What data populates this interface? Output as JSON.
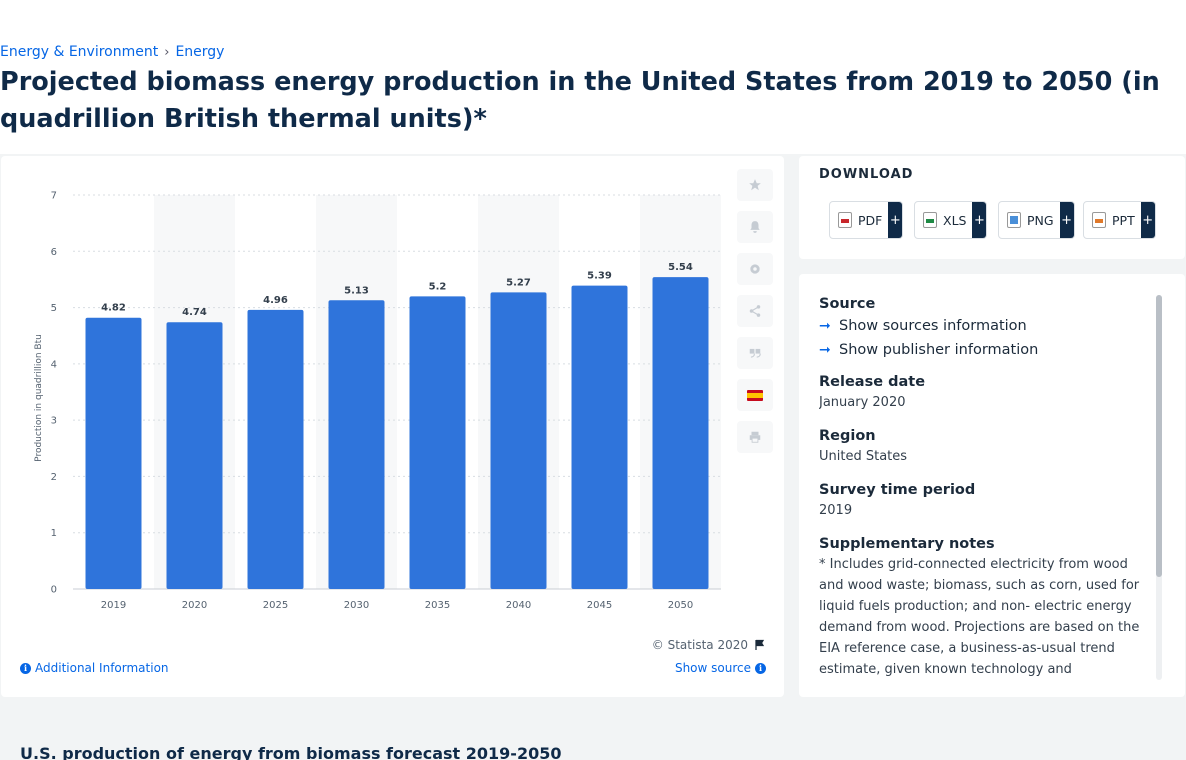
{
  "breadcrumb": {
    "items": [
      "Energy & Environment",
      "Energy"
    ],
    "separator": "›"
  },
  "page": {
    "title": "Projected biomass energy production in the United States from 2019 to 2050 (in quadrillion British thermal units)*",
    "related_title": "U.S. production of energy from biomass forecast 2019-2050"
  },
  "chart_data": {
    "type": "bar",
    "categories": [
      "2019",
      "2020",
      "2025",
      "2030",
      "2035",
      "2040",
      "2045",
      "2050"
    ],
    "values": [
      4.82,
      4.74,
      4.96,
      5.13,
      5.2,
      5.27,
      5.39,
      5.54
    ],
    "data_labels": [
      "4.82",
      "4.74",
      "4.96",
      "5.13",
      "5.2",
      "5.27",
      "5.39",
      "5.54"
    ],
    "title": "",
    "xlabel": "",
    "ylabel": "Production in quadrillion Btu",
    "ylim": [
      0,
      7
    ],
    "yticks": [
      0,
      1,
      2,
      3,
      4,
      5,
      6,
      7
    ],
    "grid": true,
    "bar_color": "#2f74db",
    "band_color": "#f7f8f9"
  },
  "chart_footer": {
    "copyright": "© Statista 2020",
    "additional_info": "Additional Information",
    "show_source": "Show source"
  },
  "tools": [
    "star-icon",
    "bell-icon",
    "gear-icon",
    "share-icon",
    "quote-icon",
    "spanish-flag-icon",
    "print-icon"
  ],
  "download": {
    "title": "DOWNLOAD",
    "buttons": [
      {
        "label": "PDF",
        "plus": "+"
      },
      {
        "label": "XLS",
        "plus": "+"
      },
      {
        "label": "PNG",
        "plus": "+"
      },
      {
        "label": "PPT",
        "plus": "+"
      }
    ]
  },
  "source": {
    "heading": "Source",
    "show_sources": "Show sources information",
    "show_publisher": "Show publisher information",
    "release_date_label": "Release date",
    "release_date": "January 2020",
    "region_label": "Region",
    "region": "United States",
    "survey_label": "Survey time period",
    "survey": "2019",
    "notes_label": "Supplementary notes",
    "notes": "* Includes grid-connected electricity from wood and wood waste; biomass, such as corn, used for liquid fuels production; and non- electric energy demand from wood. Projections are based on the EIA reference case, a business-as-usual trend estimate, given known technology and technological and"
  },
  "colors": {
    "accent": "#0666e5",
    "title": "#0f2a48"
  }
}
